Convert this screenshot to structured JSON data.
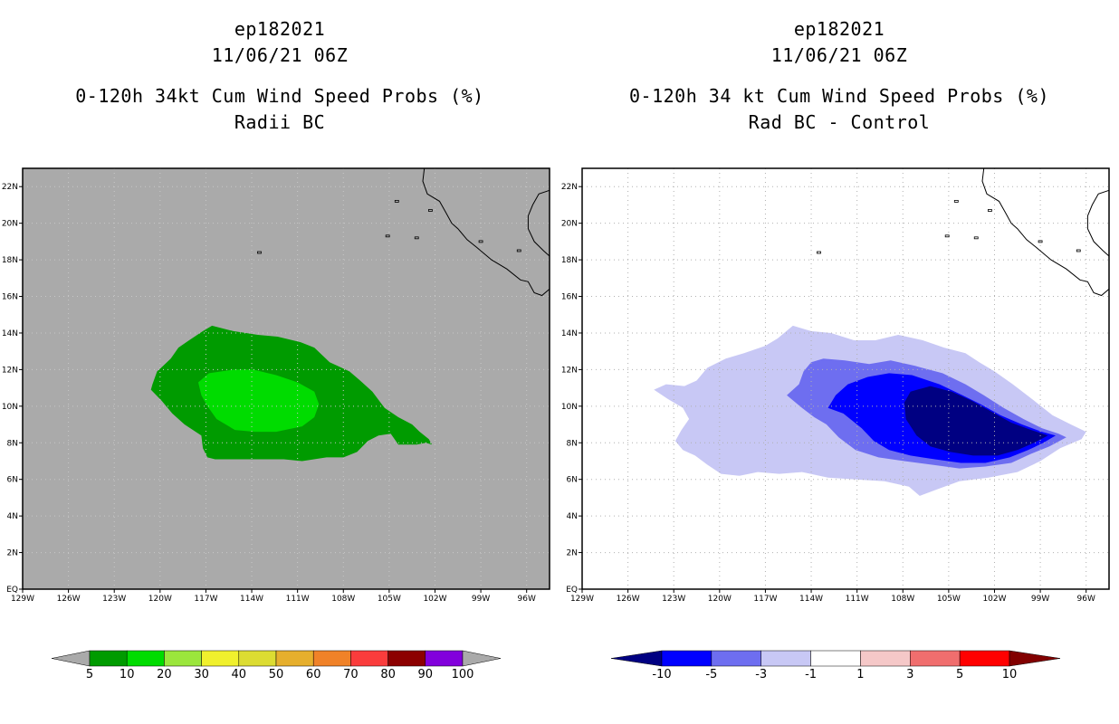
{
  "left_panel": {
    "storm_id": "ep182021",
    "datetime": "11/06/21 06Z",
    "title": "0-120h 34kt Cum Wind Speed Probs (%)",
    "subtitle": "Radii BC",
    "background_color": "#aaaaaa",
    "colorbar": {
      "labels": [
        "5",
        "10",
        "20",
        "30",
        "40",
        "50",
        "60",
        "70",
        "80",
        "90",
        "100"
      ],
      "colors": [
        "#009b00",
        "#00dc00",
        "#9be63c",
        "#f0f02d",
        "#dcdc32",
        "#e6af2d",
        "#f08228",
        "#fa3c3c",
        "#8c0000",
        "#8200dc"
      ],
      "extend_color": "#aaaaaa"
    },
    "contours": [
      {
        "level": "5-10",
        "color": "#009b00"
      },
      {
        "level": "10-20",
        "color": "#00dc00"
      }
    ]
  },
  "right_panel": {
    "storm_id": "ep182021",
    "datetime": "11/06/21 06Z",
    "title": "0-120h 34 kt Cum Wind Speed Probs (%)",
    "subtitle": "Rad BC - Control",
    "background_color": "#ffffff",
    "colorbar": {
      "labels": [
        "-10",
        "-5",
        "-3",
        "-1",
        "1",
        "3",
        "5",
        "10"
      ],
      "colors": [
        "#0000ff",
        "#6e6ef0",
        "#c8c8f5",
        "#ffffff",
        "#f5c8c8",
        "#f06e6e",
        "#ff0000"
      ],
      "low_extend_color": "#000082",
      "high_extend_color": "#820000"
    },
    "contours": [
      {
        "level": "-1 to -3",
        "color": "#c8c8f5"
      },
      {
        "level": "-3 to -5",
        "color": "#6e6ef0"
      },
      {
        "level": "-5 to -10",
        "color": "#0000ff"
      },
      {
        "level": "< -10",
        "color": "#000082"
      }
    ]
  },
  "axes": {
    "lon_labels": [
      "129W",
      "126W",
      "123W",
      "120W",
      "117W",
      "114W",
      "111W",
      "108W",
      "105W",
      "102W",
      "99W",
      "96W"
    ],
    "lat_labels": [
      "EQ",
      "2N",
      "4N",
      "6N",
      "8N",
      "10N",
      "12N",
      "14N",
      "16N",
      "18N",
      "20N",
      "22N"
    ],
    "lon_range": [
      -129,
      -94.5
    ],
    "lat_range": [
      0,
      23
    ]
  },
  "coastline": [
    [
      [
        -102.7,
        23
      ],
      [
        -102.8,
        22.3
      ],
      [
        -102.5,
        21.6
      ],
      [
        -101.7,
        21.2
      ],
      [
        -101.3,
        20.6
      ],
      [
        -100.9,
        20.0
      ],
      [
        -100.5,
        19.7
      ],
      [
        -99.9,
        19.1
      ],
      [
        -99.3,
        18.7
      ],
      [
        -98.3,
        18.0
      ],
      [
        -97.3,
        17.5
      ],
      [
        -96.4,
        16.9
      ],
      [
        -95.9,
        16.8
      ],
      [
        -95.5,
        16.2
      ],
      [
        -95.0,
        16.05
      ],
      [
        -94.5,
        16.4
      ]
    ],
    [
      [
        -94.5,
        21.8
      ],
      [
        -95.2,
        21.6
      ],
      [
        -95.6,
        21.0
      ],
      [
        -95.9,
        20.4
      ],
      [
        -95.9,
        19.7
      ],
      [
        -95.5,
        19.0
      ],
      [
        -94.9,
        18.5
      ],
      [
        -94.5,
        18.2
      ]
    ]
  ]
}
